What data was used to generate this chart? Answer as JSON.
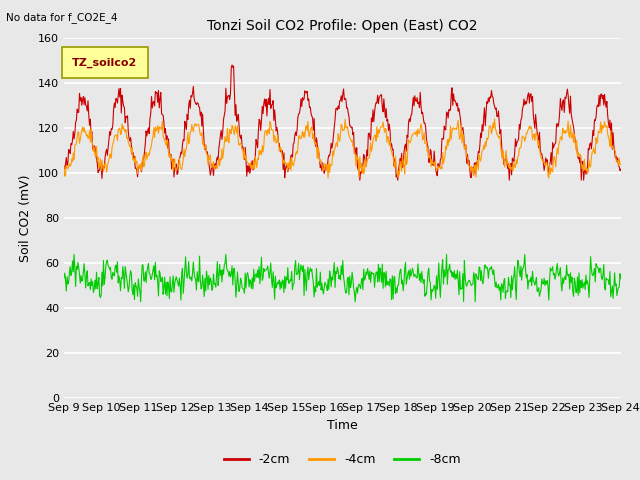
{
  "title": "Tonzi Soil CO2 Profile: Open (East) CO2",
  "top_left_text": "No data for f_CO2E_4",
  "xlabel": "Time",
  "ylabel": "Soil CO2 (mV)",
  "ylim": [
    0,
    160
  ],
  "yticks": [
    0,
    20,
    40,
    60,
    80,
    100,
    120,
    140,
    160
  ],
  "xtick_labels": [
    "Sep 9",
    "Sep 10",
    "Sep 11",
    "Sep 12",
    "Sep 13",
    "Sep 14",
    "Sep 15",
    "Sep 16",
    "Sep 17",
    "Sep 18",
    "Sep 19",
    "Sep 20",
    "Sep 21",
    "Sep 22",
    "Sep 23",
    "Sep 24"
  ],
  "legend_label": "TZ_soilco2",
  "legend_box_color": "#ffff99",
  "line_colors": {
    "depth_2cm": "#cc0000",
    "depth_4cm": "#ff9900",
    "depth_8cm": "#00cc00"
  },
  "line_labels": [
    "-2cm",
    "-4cm",
    "-8cm"
  ],
  "background_color": "#e8e8e8",
  "grid_color": "#ffffff",
  "num_days": 15,
  "points_per_day": 48,
  "seed": 42,
  "title_fontsize": 10,
  "axis_label_fontsize": 9,
  "tick_fontsize": 8
}
